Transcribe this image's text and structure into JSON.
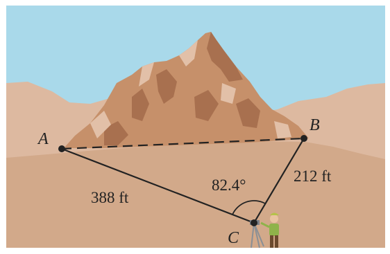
{
  "points": {
    "a": {
      "label": "A"
    },
    "b": {
      "label": "B"
    },
    "c": {
      "label": "C"
    }
  },
  "measurements": {
    "ac": "388 ft",
    "bc": "212 ft",
    "angle_c": "82.4°"
  },
  "colors": {
    "sky": "#a9d9ea",
    "ground": "#d2a98a",
    "hills": "#ddb9a0",
    "mountain": "#c6906a",
    "mountain_shadow": "#a8704f",
    "mountain_highlight": "#e2c0a8",
    "line": "#222222"
  }
}
